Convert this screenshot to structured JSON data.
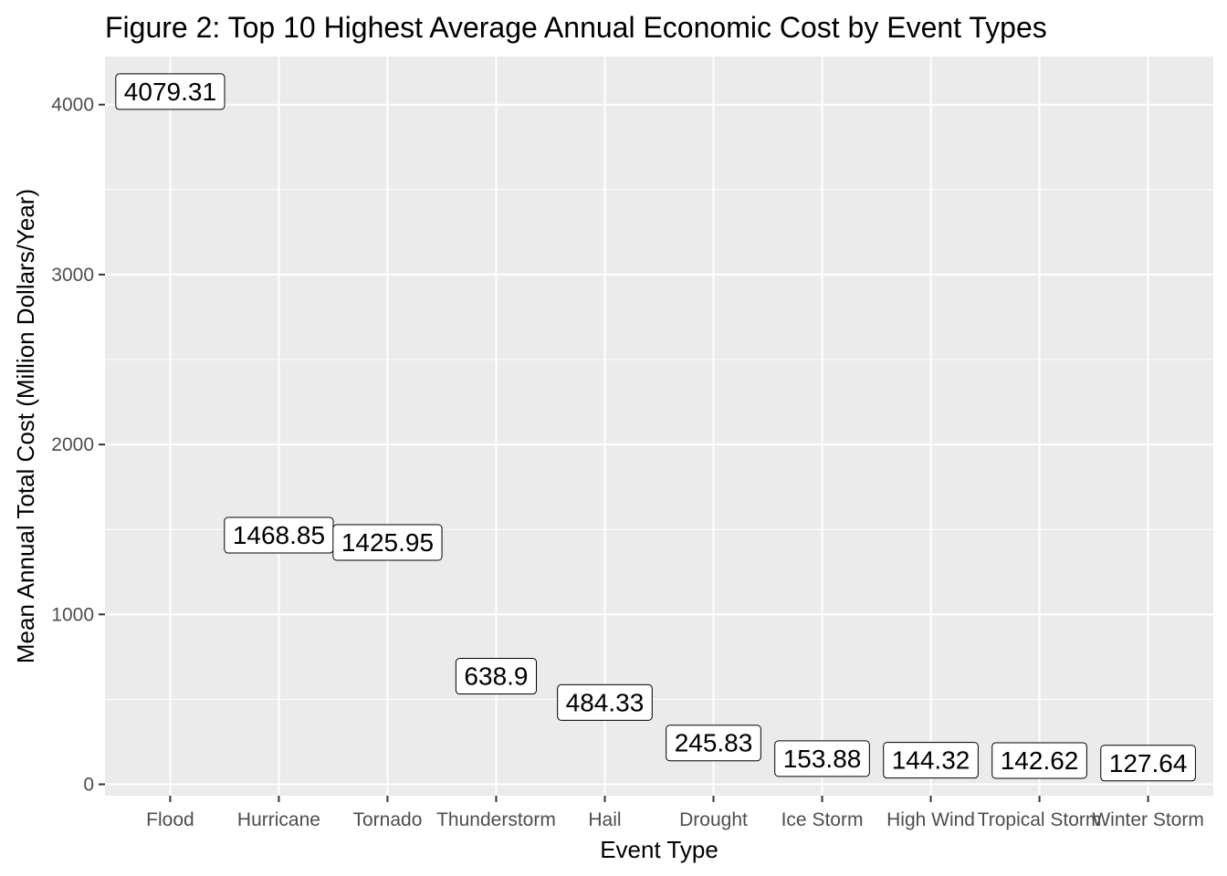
{
  "chart_data": {
    "type": "scatter",
    "title": "Figure 2: Top 10 Highest Average Annual Economic Cost by Event Types",
    "xlabel": "Event Type",
    "ylabel": "Mean Annual Total Cost (Million Dollars/Year)",
    "categories": [
      "Flood",
      "Hurricane",
      "Tornado",
      "Thunderstorm",
      "Hail",
      "Drought",
      "Ice Storm",
      "High Wind",
      "Tropical Storm",
      "Winter Storm"
    ],
    "values": [
      4079.31,
      1468.85,
      1425.95,
      638.9,
      484.33,
      245.83,
      153.88,
      144.32,
      142.62,
      127.64
    ],
    "labels": [
      "4079.31",
      "1468.85",
      "1425.95",
      "638.9",
      "484.33",
      "245.83",
      "153.88",
      "144.32",
      "142.62",
      "127.64"
    ],
    "ylim": [
      -67,
      4283
    ],
    "yticks": [
      0,
      1000,
      2000,
      3000,
      4000
    ],
    "grid": true,
    "colors": {
      "panel": "#ebebeb",
      "grid": "#ffffff",
      "tick": "#333333",
      "label_fill": "#ffffff",
      "label_border": "#000000"
    }
  }
}
